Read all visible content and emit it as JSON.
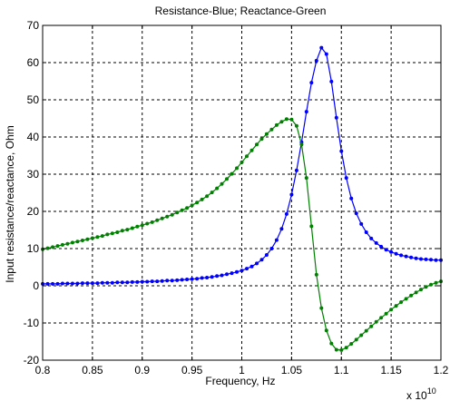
{
  "chart_data": {
    "type": "line",
    "title": "Resistance-Blue; Reactance-Green",
    "xlabel": "Frequency, Hz",
    "ylabel": "Input  resistance/reactance, Ohm",
    "x_exponent_label": "x 10",
    "x_exponent_power": "10",
    "xlim": [
      0.8,
      1.2
    ],
    "ylim": [
      -20,
      70
    ],
    "x_ticks": [
      0.8,
      0.85,
      0.9,
      0.95,
      1.0,
      1.05,
      1.1,
      1.15,
      1.2
    ],
    "x_tick_labels": [
      "0.8",
      "0.85",
      "0.9",
      "0.95",
      "1",
      "1.05",
      "1.1",
      "1.15",
      "1.2"
    ],
    "y_ticks": [
      -20,
      -10,
      0,
      10,
      20,
      30,
      40,
      50,
      60,
      70
    ],
    "y_tick_labels": [
      "-20",
      "-10",
      "0",
      "10",
      "20",
      "30",
      "40",
      "50",
      "60",
      "70"
    ],
    "grid": true,
    "x": [
      0.8,
      0.805,
      0.81,
      0.815,
      0.82,
      0.825,
      0.83,
      0.835,
      0.84,
      0.845,
      0.85,
      0.855,
      0.86,
      0.865,
      0.87,
      0.875,
      0.88,
      0.885,
      0.89,
      0.895,
      0.9,
      0.905,
      0.91,
      0.915,
      0.92,
      0.925,
      0.93,
      0.935,
      0.94,
      0.945,
      0.95,
      0.955,
      0.96,
      0.965,
      0.97,
      0.975,
      0.98,
      0.985,
      0.99,
      0.995,
      1.0,
      1.005,
      1.01,
      1.015,
      1.02,
      1.025,
      1.03,
      1.035,
      1.04,
      1.045,
      1.05,
      1.055,
      1.06,
      1.065,
      1.07,
      1.075,
      1.08,
      1.085,
      1.09,
      1.095,
      1.1,
      1.105,
      1.11,
      1.115,
      1.12,
      1.125,
      1.13,
      1.135,
      1.14,
      1.145,
      1.15,
      1.155,
      1.16,
      1.165,
      1.17,
      1.175,
      1.18,
      1.185,
      1.19,
      1.195,
      1.2
    ],
    "series": [
      {
        "color": "#0000ff",
        "values": [
          0.5,
          0.5,
          0.5,
          0.5,
          0.6,
          0.6,
          0.6,
          0.6,
          0.7,
          0.7,
          0.7,
          0.7,
          0.8,
          0.8,
          0.8,
          0.9,
          0.9,
          0.9,
          1.0,
          1.0,
          1.1,
          1.1,
          1.2,
          1.2,
          1.3,
          1.4,
          1.4,
          1.5,
          1.6,
          1.7,
          1.8,
          1.9,
          2.1,
          2.2,
          2.4,
          2.6,
          2.8,
          3.1,
          3.4,
          3.7,
          4.1,
          4.6,
          5.2,
          6.0,
          7.0,
          8.3,
          10.0,
          12.3,
          15.3,
          19.3,
          24.5,
          31.0,
          38.6,
          46.8,
          54.6,
          60.5,
          64.0,
          62.3,
          54.9,
          45.2,
          36.2,
          29.0,
          23.5,
          19.5,
          16.6,
          14.4,
          12.7,
          11.5,
          10.5,
          9.7,
          9.1,
          8.6,
          8.2,
          7.9,
          7.6,
          7.4,
          7.2,
          7.1,
          7.0,
          6.9,
          6.9
        ]
      },
      {
        "color": "#008000",
        "values": [
          9.8,
          10.1,
          10.4,
          10.7,
          11.0,
          11.3,
          11.6,
          11.9,
          12.2,
          12.5,
          12.8,
          13.1,
          13.4,
          13.8,
          14.1,
          14.4,
          14.8,
          15.1,
          15.5,
          15.9,
          16.3,
          16.7,
          17.1,
          17.6,
          18.1,
          18.6,
          19.1,
          19.7,
          20.3,
          20.9,
          21.6,
          22.4,
          23.2,
          24.1,
          25.1,
          26.2,
          27.4,
          28.7,
          30.1,
          31.6,
          33.2,
          34.8,
          36.4,
          38.0,
          39.5,
          40.8,
          42.0,
          43.2,
          44.1,
          44.8,
          44.7,
          43.0,
          38.0,
          29.0,
          16.0,
          3.0,
          -6.0,
          -12.0,
          -15.5,
          -17.2,
          -17.3,
          -16.6,
          -15.6,
          -14.5,
          -13.3,
          -12.1,
          -10.9,
          -9.7,
          -8.6,
          -7.5,
          -6.4,
          -5.4,
          -4.4,
          -3.5,
          -2.6,
          -1.8,
          -1.0,
          -0.3,
          0.3,
          0.8,
          1.2
        ]
      }
    ]
  }
}
